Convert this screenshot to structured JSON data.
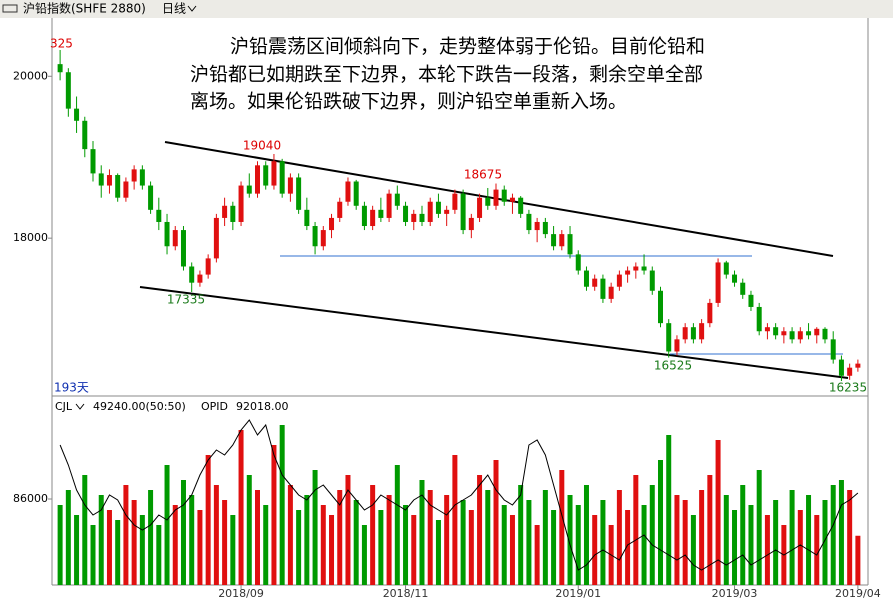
{
  "chart_data": {
    "type": "candlestick",
    "header": {
      "symbol": "沪铅指数(SHFE 2880)",
      "period": "日线"
    },
    "note_lines": [
      "沪铅震荡区间倾斜向下，走势整体弱于伦铅。目前伦铅和",
      "沪铅都已如期跌至下边界，本轮下跌告一段落，剩余空单全部",
      "离场。如果伦铅跌破下边界，则沪铅空单重新入场。"
    ],
    "annotations": [
      "325",
      "19040",
      "18675",
      "17335",
      "16525",
      "16235"
    ],
    "days_label": "193天",
    "ylim": [
      16050,
      20720
    ],
    "yticks": [
      18000,
      20000
    ],
    "up_color": "#e01010",
    "down_color": "#009a00",
    "candles": [
      [
        20150,
        20325,
        19950,
        20050
      ],
      [
        20050,
        20100,
        19500,
        19600
      ],
      [
        19600,
        19750,
        19300,
        19450
      ],
      [
        19450,
        19500,
        19000,
        19100
      ],
      [
        19100,
        19200,
        18700,
        18800
      ],
      [
        18800,
        18900,
        18500,
        18650
      ],
      [
        18650,
        18850,
        18550,
        18780
      ],
      [
        18780,
        18800,
        18450,
        18500
      ],
      [
        18500,
        18750,
        18450,
        18700
      ],
      [
        18700,
        18900,
        18600,
        18850
      ],
      [
        18850,
        18900,
        18600,
        18650
      ],
      [
        18650,
        18700,
        18300,
        18350
      ],
      [
        18350,
        18500,
        18100,
        18200
      ],
      [
        18200,
        18300,
        17800,
        17900
      ],
      [
        17900,
        18150,
        17850,
        18100
      ],
      [
        18100,
        18150,
        17600,
        17650
      ],
      [
        17650,
        17700,
        17335,
        17450
      ],
      [
        17450,
        17600,
        17400,
        17550
      ],
      [
        17550,
        17800,
        17500,
        17750
      ],
      [
        17750,
        18300,
        17700,
        18250
      ],
      [
        18250,
        18500,
        18150,
        18400
      ],
      [
        18400,
        18450,
        18100,
        18200
      ],
      [
        18200,
        18700,
        18150,
        18650
      ],
      [
        18650,
        18800,
        18500,
        18550
      ],
      [
        18550,
        18950,
        18500,
        18900
      ],
      [
        18900,
        18950,
        18600,
        18650
      ],
      [
        18650,
        19040,
        18600,
        18950
      ],
      [
        18950,
        18980,
        18500,
        18550
      ],
      [
        18550,
        18800,
        18450,
        18750
      ],
      [
        18750,
        18800,
        18300,
        18350
      ],
      [
        18350,
        18500,
        18100,
        18150
      ],
      [
        18150,
        18200,
        17800,
        17900
      ],
      [
        17900,
        18150,
        17850,
        18100
      ],
      [
        18100,
        18300,
        18000,
        18250
      ],
      [
        18250,
        18500,
        18200,
        18450
      ],
      [
        18450,
        18750,
        18400,
        18700
      ],
      [
        18700,
        18720,
        18350,
        18400
      ],
      [
        18400,
        18450,
        18100,
        18150
      ],
      [
        18150,
        18400,
        18100,
        18350
      ],
      [
        18350,
        18500,
        18200,
        18250
      ],
      [
        18250,
        18600,
        18200,
        18550
      ],
      [
        18550,
        18650,
        18350,
        18400
      ],
      [
        18400,
        18450,
        18150,
        18200
      ],
      [
        18200,
        18350,
        18100,
        18300
      ],
      [
        18300,
        18400,
        18150,
        18200
      ],
      [
        18200,
        18500,
        18150,
        18450
      ],
      [
        18450,
        18550,
        18250,
        18300
      ],
      [
        18300,
        18400,
        18150,
        18350
      ],
      [
        18350,
        18600,
        18300,
        18550
      ],
      [
        18550,
        18600,
        18050,
        18100
      ],
      [
        18100,
        18300,
        18000,
        18250
      ],
      [
        18250,
        18550,
        18200,
        18500
      ],
      [
        18500,
        18620,
        18350,
        18400
      ],
      [
        18400,
        18675,
        18350,
        18600
      ],
      [
        18600,
        18650,
        18400,
        18450
      ],
      [
        18450,
        18550,
        18300,
        18500
      ],
      [
        18500,
        18520,
        18250,
        18300
      ],
      [
        18300,
        18350,
        18050,
        18100
      ],
      [
        18100,
        18250,
        17950,
        18200
      ],
      [
        18200,
        18250,
        18000,
        18050
      ],
      [
        18050,
        18150,
        17850,
        17900
      ],
      [
        17900,
        18100,
        17850,
        18050
      ],
      [
        18050,
        18150,
        17750,
        17800
      ],
      [
        17800,
        17850,
        17550,
        17600
      ],
      [
        17600,
        17650,
        17350,
        17400
      ],
      [
        17400,
        17550,
        17350,
        17500
      ],
      [
        17500,
        17550,
        17200,
        17250
      ],
      [
        17250,
        17450,
        17200,
        17400
      ],
      [
        17400,
        17600,
        17350,
        17550
      ],
      [
        17550,
        17650,
        17450,
        17600
      ],
      [
        17600,
        17700,
        17500,
        17650
      ],
      [
        17650,
        17800,
        17550,
        17600
      ],
      [
        17600,
        17650,
        17300,
        17350
      ],
      [
        17350,
        17400,
        16900,
        16950
      ],
      [
        16950,
        17000,
        16525,
        16600
      ],
      [
        16600,
        16800,
        16550,
        16750
      ],
      [
        16750,
        16950,
        16700,
        16900
      ],
      [
        16900,
        16950,
        16700,
        16750
      ],
      [
        16750,
        17000,
        16700,
        16950
      ],
      [
        16950,
        17250,
        16900,
        17200
      ],
      [
        17200,
        17750,
        17150,
        17700
      ],
      [
        17700,
        17720,
        17500,
        17550
      ],
      [
        17550,
        17600,
        17400,
        17450
      ],
      [
        17450,
        17500,
        17250,
        17300
      ],
      [
        17300,
        17350,
        17100,
        17150
      ],
      [
        17150,
        17200,
        16800,
        16850
      ],
      [
        16850,
        16950,
        16750,
        16900
      ],
      [
        16900,
        16950,
        16750,
        16800
      ],
      [
        16800,
        16900,
        16700,
        16850
      ],
      [
        16850,
        16900,
        16700,
        16750
      ],
      [
        16750,
        16900,
        16700,
        16850
      ],
      [
        16850,
        16950,
        16750,
        16800
      ],
      [
        16800,
        16900,
        16700,
        16880
      ],
      [
        16880,
        16900,
        16700,
        16750
      ],
      [
        16750,
        16850,
        16450,
        16500
      ],
      [
        16500,
        16550,
        16235,
        16300
      ],
      [
        16300,
        16450,
        16250,
        16400
      ],
      [
        16400,
        16500,
        16350,
        16450
      ]
    ],
    "categories": [
      null,
      null,
      null,
      null,
      null,
      null,
      null,
      null,
      null,
      null,
      null,
      null,
      null,
      null,
      null,
      null,
      null,
      null,
      null,
      null,
      null,
      null,
      "2018/09",
      null,
      null,
      null,
      null,
      null,
      null,
      null,
      null,
      null,
      null,
      null,
      null,
      null,
      null,
      null,
      null,
      null,
      null,
      null,
      "2018/11",
      null,
      null,
      null,
      null,
      null,
      null,
      null,
      null,
      null,
      null,
      null,
      null,
      null,
      null,
      null,
      null,
      null,
      null,
      null,
      null,
      "2019/01",
      null,
      null,
      null,
      null,
      null,
      null,
      null,
      null,
      null,
      null,
      null,
      null,
      null,
      null,
      null,
      null,
      null,
      null,
      "2019/03",
      null,
      null,
      null,
      null,
      null,
      null,
      null,
      null,
      null,
      null,
      null,
      null,
      null,
      null,
      "2019/04"
    ],
    "volume": {
      "label": "CJL",
      "reading": "49240.00(50:50)",
      "opid_label": "OPID",
      "opid_reading": "92018.00",
      "ylim": [
        0,
        170000
      ],
      "yticks": [
        86000
      ],
      "values": [
        80000,
        95000,
        70000,
        110000,
        60000,
        90000,
        75000,
        65000,
        100000,
        85000,
        70000,
        95000,
        60000,
        120000,
        80000,
        105000,
        90000,
        75000,
        130000,
        100000,
        85000,
        70000,
        155000,
        110000,
        95000,
        80000,
        140000,
        160000,
        100000,
        75000,
        90000,
        115000,
        80000,
        70000,
        95000,
        110000,
        85000,
        60000,
        100000,
        75000,
        90000,
        120000,
        80000,
        70000,
        105000,
        95000,
        65000,
        90000,
        130000,
        85000,
        75000,
        110000,
        95000,
        125000,
        80000,
        70000,
        100000,
        85000,
        60000,
        95000,
        75000,
        115000,
        90000,
        80000,
        100000,
        70000,
        85000,
        60000,
        95000,
        75000,
        110000,
        80000,
        100000,
        125000,
        150000,
        90000,
        85000,
        70000,
        95000,
        110000,
        145000,
        90000,
        75000,
        100000,
        80000,
        115000,
        70000,
        85000,
        60000,
        95000,
        75000,
        90000,
        70000,
        85000,
        100000,
        105000,
        95000,
        49240
      ],
      "opid": [
        140000,
        120000,
        95000,
        80000,
        70000,
        75000,
        90000,
        85000,
        70000,
        60000,
        55000,
        60000,
        70000,
        65000,
        75000,
        80000,
        90000,
        110000,
        125000,
        135000,
        130000,
        140000,
        155000,
        165000,
        150000,
        160000,
        130000,
        110000,
        100000,
        90000,
        85000,
        95000,
        100000,
        90000,
        80000,
        95000,
        85000,
        75000,
        80000,
        90000,
        85000,
        80000,
        75000,
        85000,
        90000,
        80000,
        75000,
        70000,
        80000,
        85000,
        90000,
        100000,
        110000,
        95000,
        85000,
        80000,
        90000,
        140000,
        145000,
        130000,
        100000,
        70000,
        40000,
        15000,
        20000,
        30000,
        35000,
        30000,
        25000,
        40000,
        45000,
        50000,
        40000,
        35000,
        30000,
        25000,
        30000,
        20000,
        15000,
        20000,
        25000,
        20000,
        25000,
        30000,
        20000,
        25000,
        30000,
        35000,
        30000,
        35000,
        40000,
        35000,
        30000,
        45000,
        60000,
        80000,
        85000,
        92018
      ]
    }
  }
}
